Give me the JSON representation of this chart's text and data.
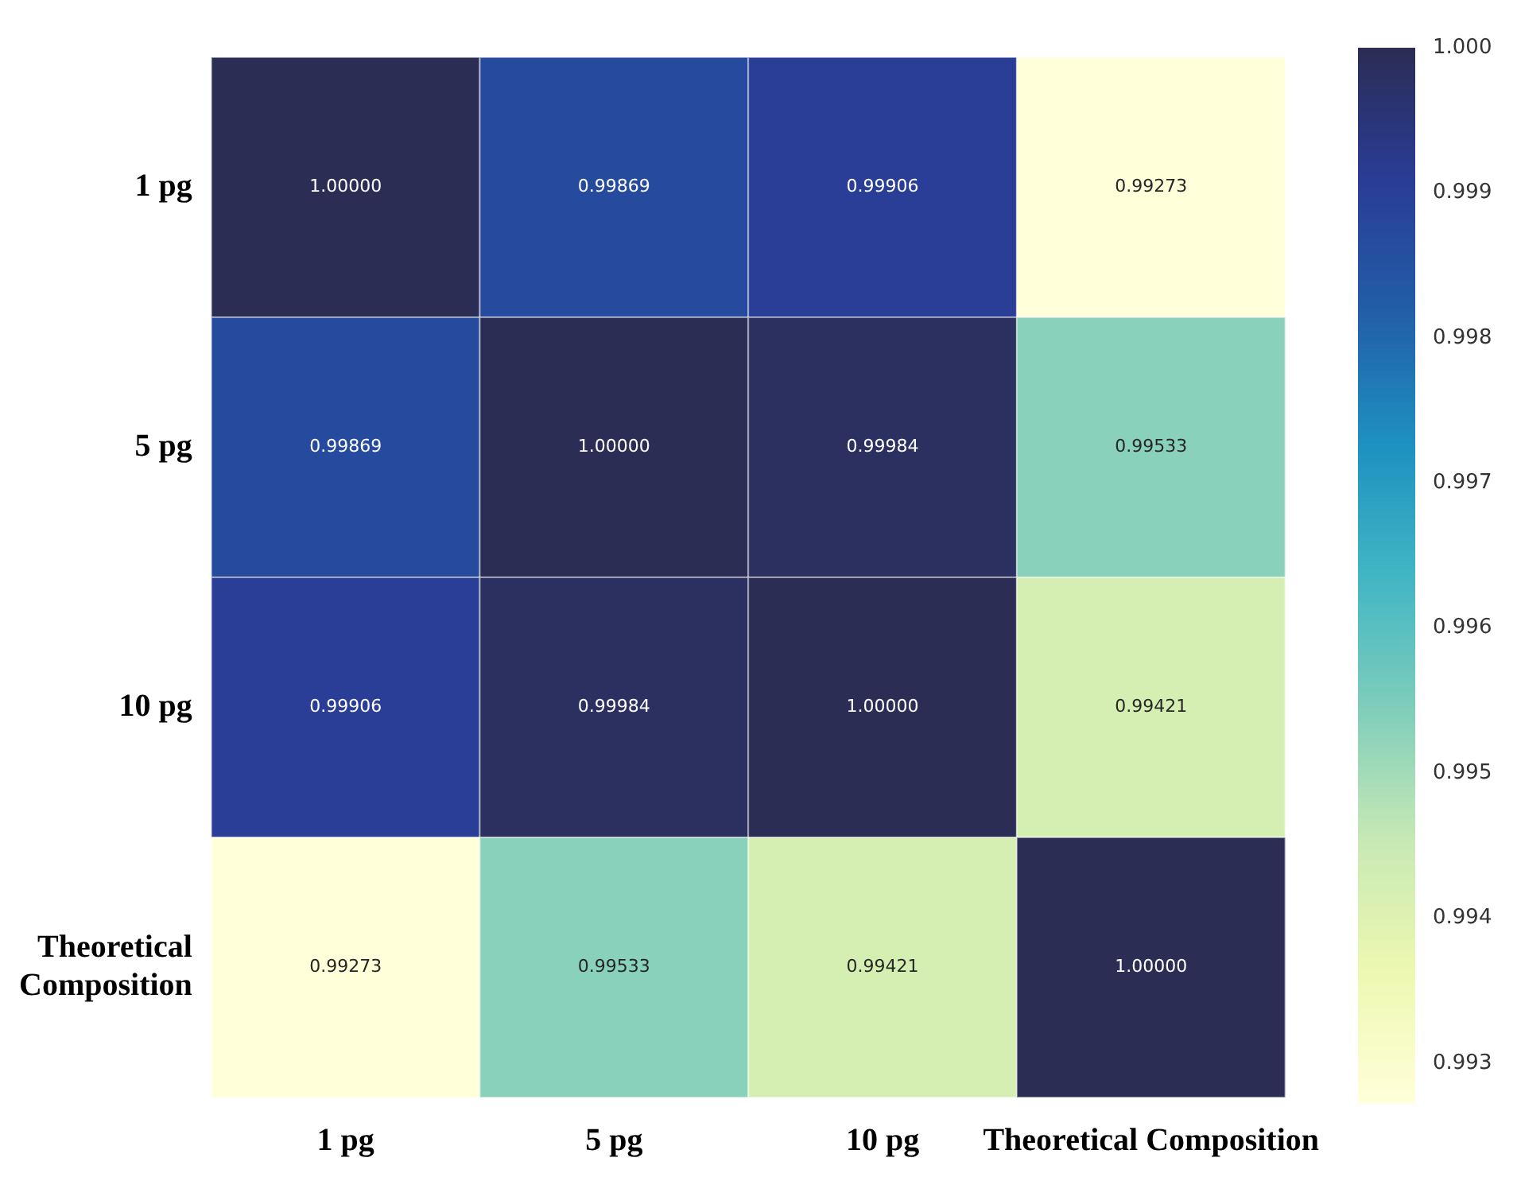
{
  "chart_data": {
    "type": "heatmap",
    "categories": [
      "1 pg",
      "5 pg",
      "10 pg",
      "Theoretical Composition"
    ],
    "y_categories": [
      "1 pg",
      "5 pg",
      "10 pg",
      "Theoretical Composition"
    ],
    "cells": [
      [
        1.0,
        0.99869,
        0.99906,
        0.99273
      ],
      [
        0.99869,
        1.0,
        0.99984,
        0.99533
      ],
      [
        0.99906,
        0.99984,
        1.0,
        0.99421
      ],
      [
        0.99273,
        0.99533,
        0.99421,
        1.0
      ]
    ],
    "cell_labels": [
      [
        "1.00000",
        "0.99869",
        "0.99906",
        "0.99273"
      ],
      [
        "0.99869",
        "1.00000",
        "0.99984",
        "0.99533"
      ],
      [
        "0.99906",
        "0.99984",
        "1.00000",
        "0.99421"
      ],
      [
        "0.99273",
        "0.99533",
        "0.99421",
        "1.00000"
      ]
    ],
    "clim": [
      0.99273,
      1.0
    ],
    "cticks": [
      0.993,
      0.994,
      0.995,
      0.996,
      0.997,
      0.998,
      0.999,
      {
        "value": 1.0,
        "label": "1.000"
      }
    ]
  }
}
